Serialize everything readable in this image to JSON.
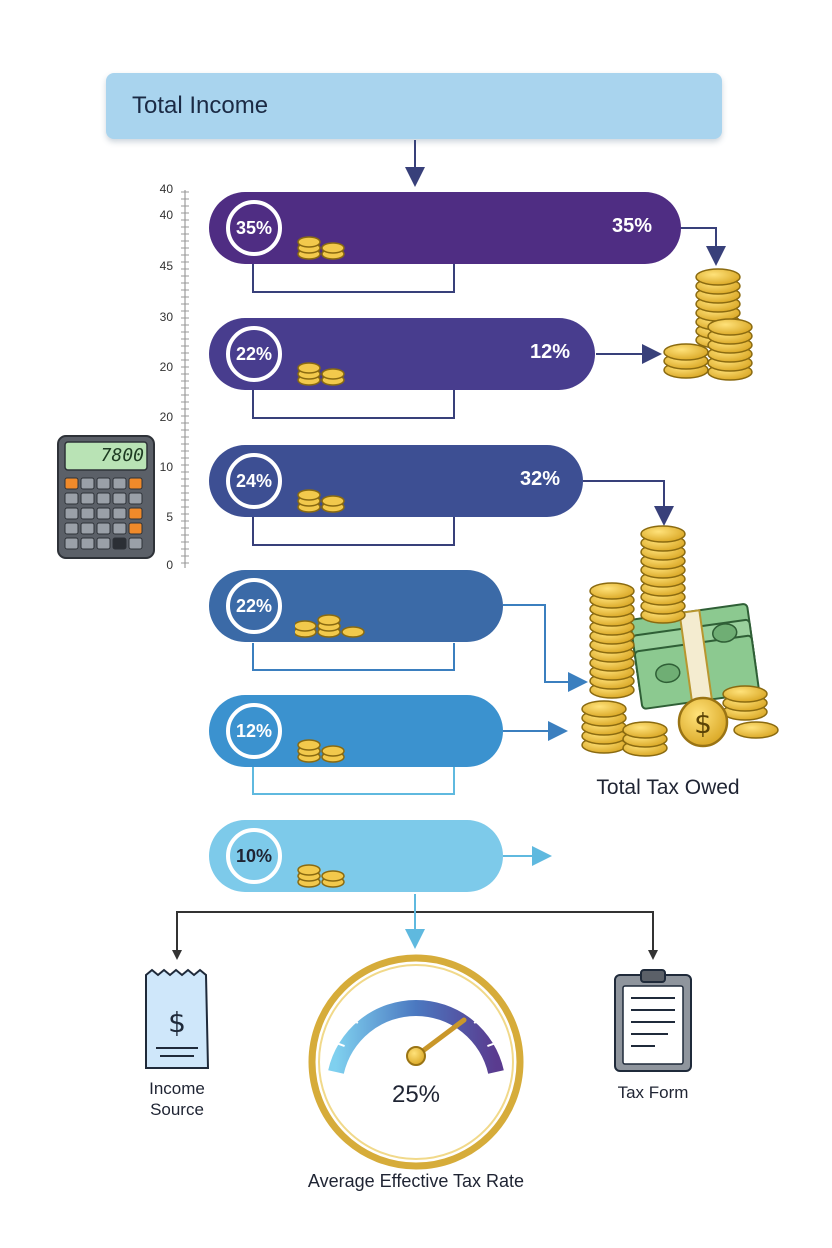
{
  "header": {
    "title": "Total Income"
  },
  "axis_ticks": [
    "40",
    "40",
    "45",
    "30",
    "20",
    "20",
    "10",
    "5",
    "0"
  ],
  "calculator": {
    "display": "7800"
  },
  "bands": [
    {
      "ring_label": "35%",
      "right_label": "35%",
      "color": "#4f2d83"
    },
    {
      "ring_label": "22%",
      "right_label": "12%",
      "color": "#483d8e"
    },
    {
      "ring_label": "24%",
      "right_label": "32%",
      "color": "#3d4f93"
    },
    {
      "ring_label": "22%",
      "right_label": "",
      "color": "#3b6aa7"
    },
    {
      "ring_label": "12%",
      "right_label": "",
      "color": "#3b92cf"
    },
    {
      "ring_label": "10%",
      "right_label": "",
      "color": "#7dcaea"
    }
  ],
  "total_tax": {
    "label": "Total Tax Owed"
  },
  "income_source": {
    "label_line1": "Income",
    "label_line2": "Source"
  },
  "tax_form": {
    "label": "Tax Form"
  },
  "gauge": {
    "value": "25%",
    "label": "Average Effective Tax Rate"
  }
}
